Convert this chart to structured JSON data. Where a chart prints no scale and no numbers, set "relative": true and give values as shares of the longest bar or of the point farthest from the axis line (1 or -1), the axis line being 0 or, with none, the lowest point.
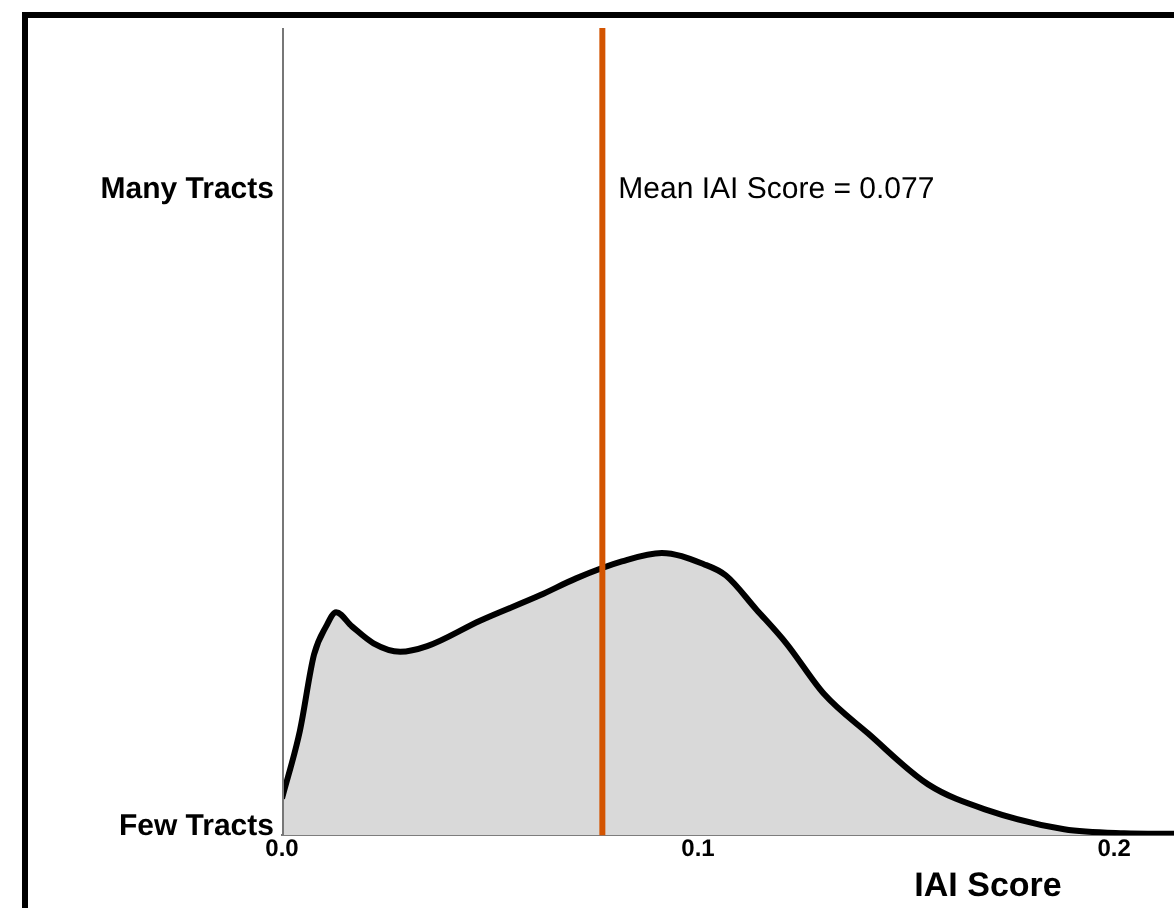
{
  "chart_data": {
    "type": "area",
    "xlabel": "IAI Score",
    "relative": true,
    "xlim": [
      0,
      0.2144
    ],
    "xticks": [
      {
        "value": 0,
        "label": "0.0"
      },
      0.1,
      0.2
    ],
    "annotations": [
      "Many Tracts",
      "Few Tracts"
    ],
    "ref_lines": [
      {
        "axis": "x",
        "value": 0.077,
        "label": "Mean IAI Score = 0.077",
        "color": "#d35400"
      }
    ],
    "series": [
      {
        "color": "#d9d9d9",
        "x": [
          0,
          0.0043,
          0.0077,
          0.0106,
          0.013,
          0.0168,
          0.022,
          0.0284,
          0.0349,
          0.0476,
          0.062,
          0.0707,
          0.0817,
          0.0913,
          0.1014,
          0.1067,
          0.114,
          0.1212,
          0.1303,
          0.1409,
          0.1553,
          0.1697,
          0.188,
          0.2024,
          0.2144
        ],
        "values": [
          0.13,
          0.37,
          0.64,
          0.74,
          0.79,
          0.74,
          0.68,
          0.65,
          0.67,
          0.76,
          0.85,
          0.91,
          0.97,
          1.0,
          0.96,
          0.92,
          0.8,
          0.68,
          0.5,
          0.36,
          0.18,
          0.088,
          0.021,
          0.007,
          0.005
        ]
      }
    ],
    "grid": false,
    "legend": false
  }
}
